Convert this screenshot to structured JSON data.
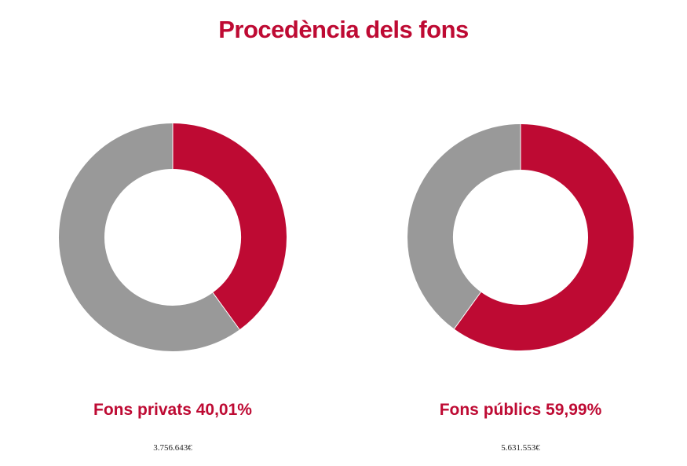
{
  "title": "Procedència dels fons",
  "colors": {
    "accent": "#be0a33",
    "remainder": "#999999"
  },
  "chart_data": [
    {
      "type": "pie",
      "label": "Fons privats 40,01%",
      "amount": "3.756.643€",
      "percent": 40.01,
      "value": 3756643
    },
    {
      "type": "pie",
      "label": "Fons públics 59,99%",
      "amount": "5.631.553€",
      "percent": 59.99,
      "value": 5631553
    }
  ]
}
